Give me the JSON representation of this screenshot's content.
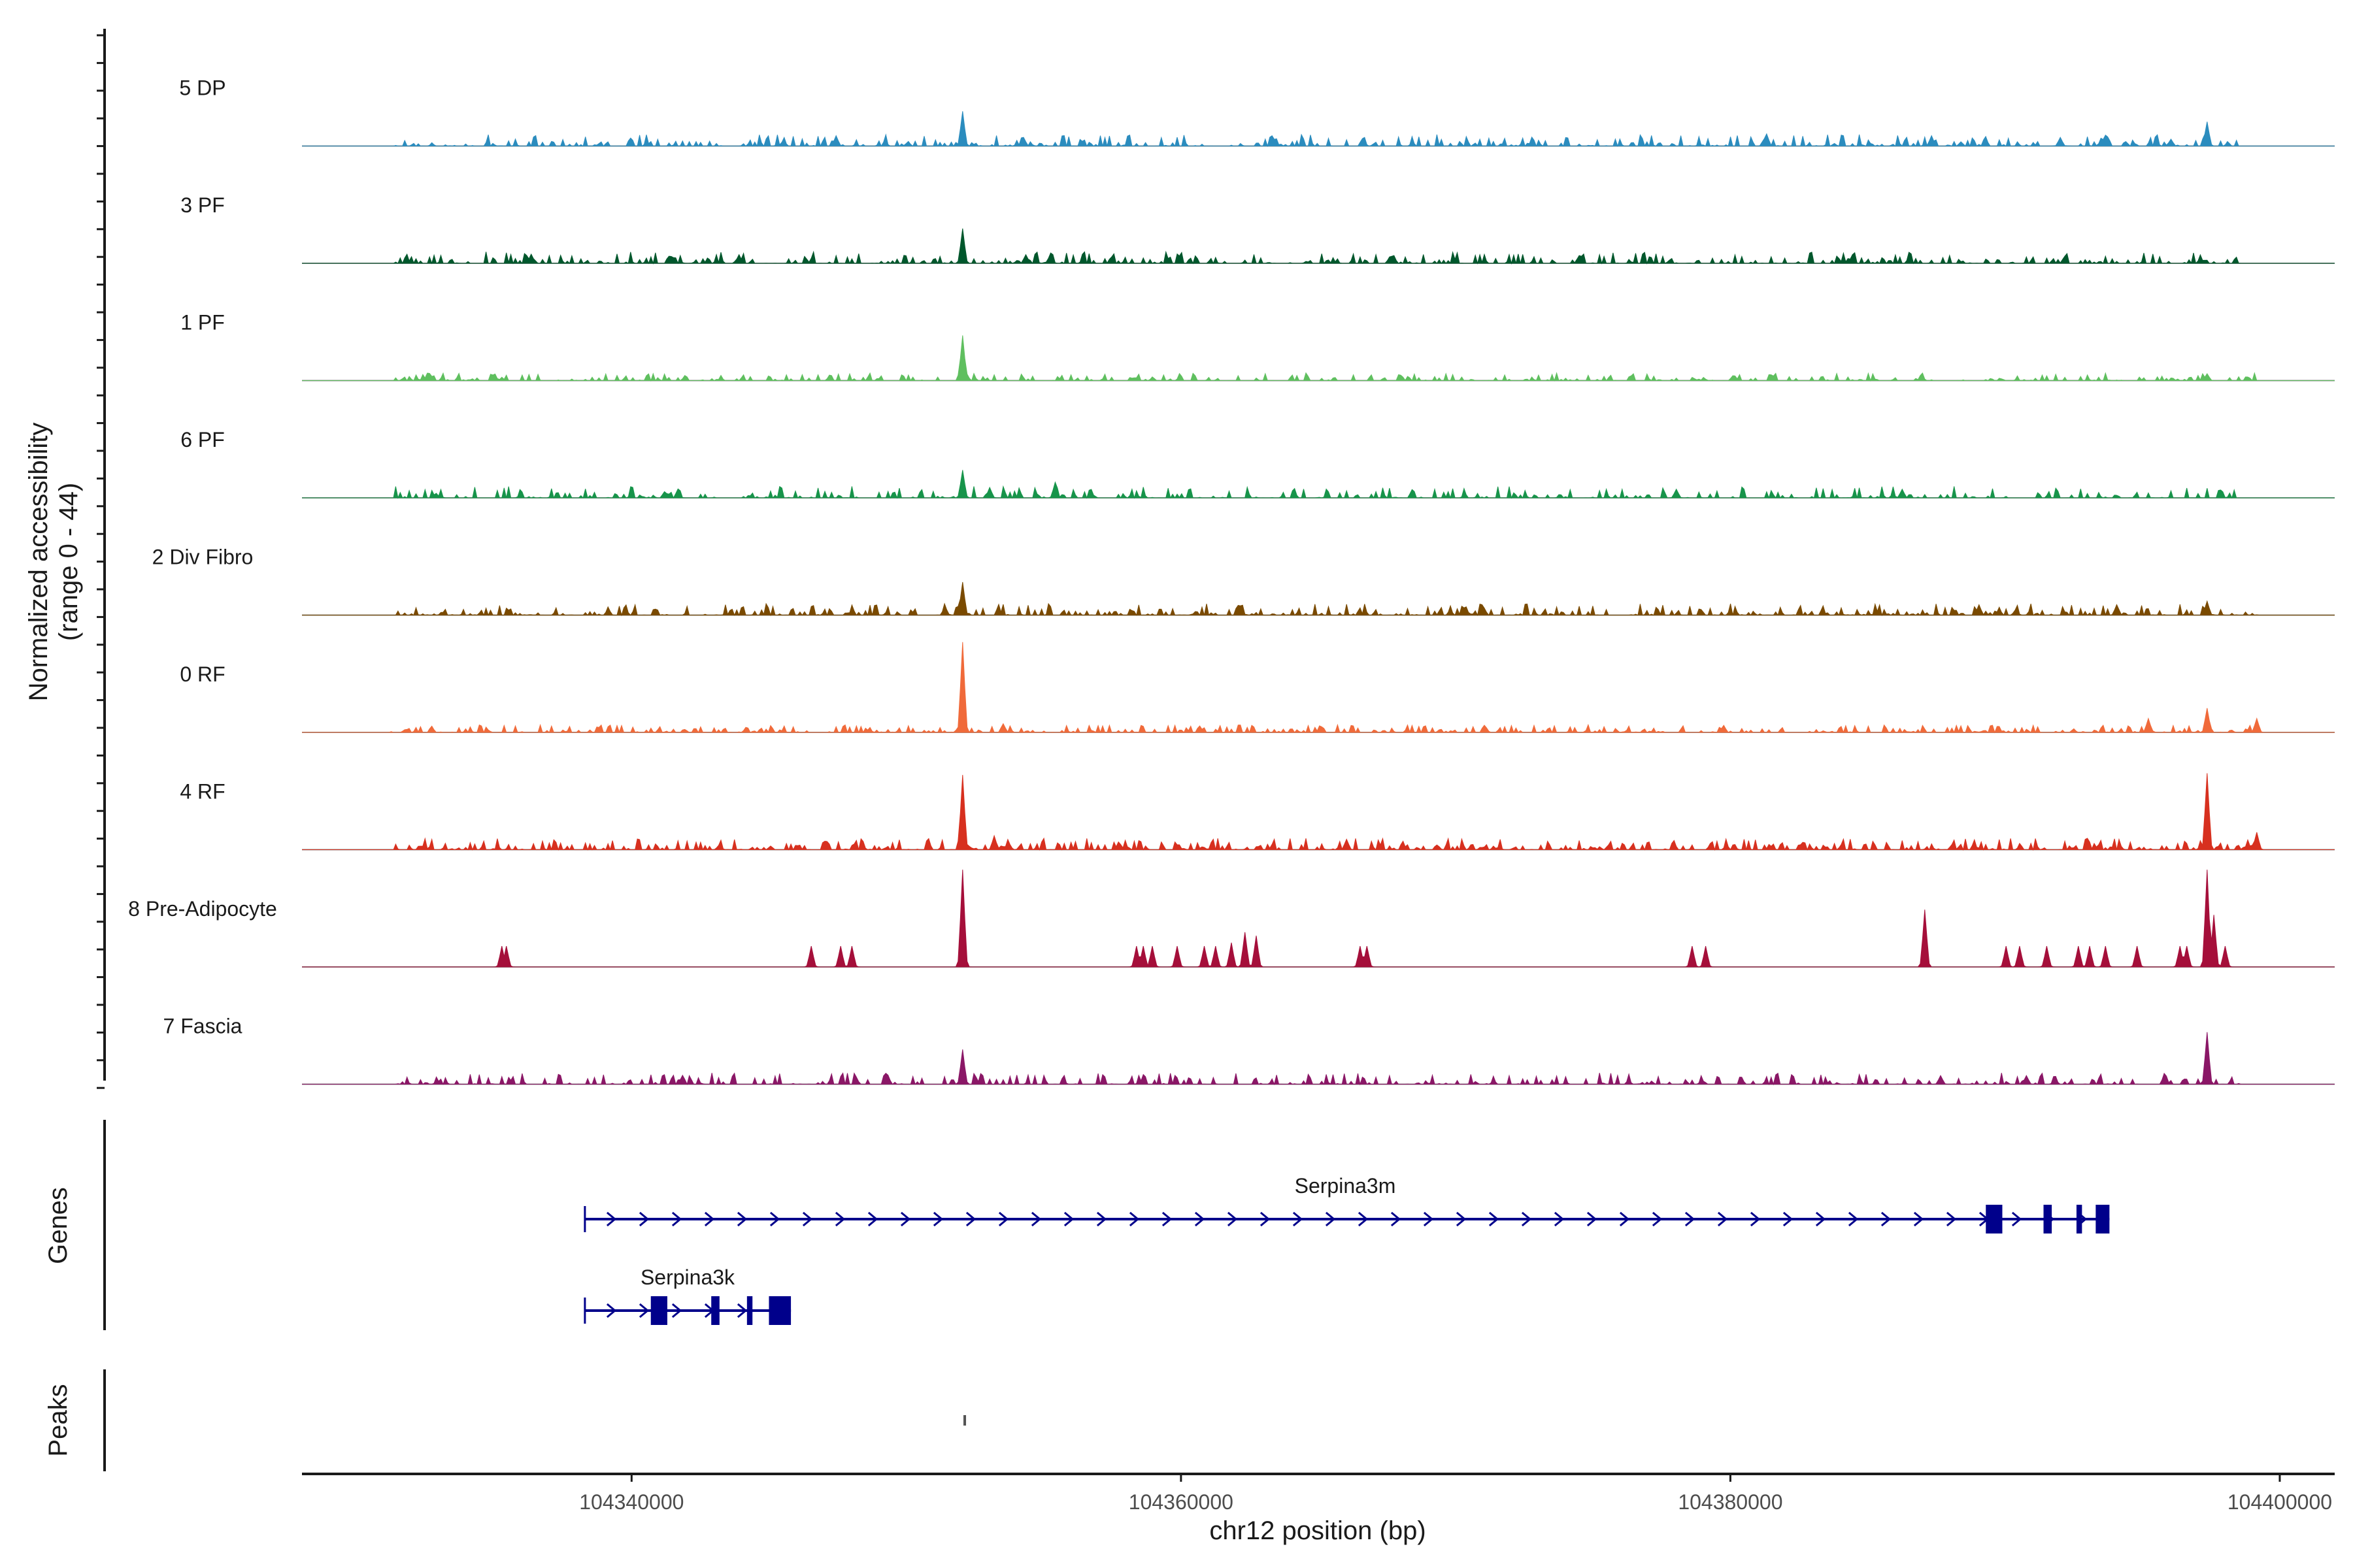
{
  "chart_data": {
    "type": "area",
    "title": "",
    "ylabel_line1": "Normalized accessibility",
    "ylabel_line2": "(range 0 - 44)",
    "y_range": [
      0,
      44
    ],
    "xlabel": "chr12 position (bp)",
    "xlim": [
      104328000,
      104402000
    ],
    "x_ticks": [
      104340000,
      104360000,
      104380000,
      104400000
    ],
    "x_tick_labels": [
      "104340000",
      "104360000",
      "104380000",
      "104400000"
    ],
    "genes_label": "Genes",
    "peaks_label": "Peaks",
    "tracks": [
      {
        "name": "5 DP",
        "color": "#2b8cbe",
        "peaks": [
          [
            104352000,
            20
          ],
          [
            104397300,
            14
          ],
          [
            104347400,
            6
          ],
          [
            104354200,
            5
          ],
          [
            104381300,
            7
          ],
          [
            104387300,
            6
          ],
          [
            104392000,
            5
          ],
          [
            104396000,
            4
          ]
        ],
        "noise_level": 3,
        "density": 0.55,
        "range": [
          104331400,
          104398600
        ],
        "seed": 11
      },
      {
        "name": "3 PF",
        "color": "#00572c",
        "peaks": [
          [
            104352000,
            20
          ],
          [
            104355200,
            6
          ],
          [
            104354300,
            5
          ],
          [
            104343900,
            5
          ],
          [
            104384400,
            5
          ]
        ],
        "noise_level": 3,
        "density": 0.55,
        "range": [
          104331400,
          104398600
        ],
        "seed": 23
      },
      {
        "name": "1 PF",
        "color": "#5fbf5f",
        "peaks": [
          [
            104352000,
            26
          ],
          [
            104397300,
            4
          ],
          [
            104368000,
            3
          ]
        ],
        "noise_level": 2,
        "density": 0.5,
        "range": [
          104331400,
          104399200
        ],
        "seed": 37
      },
      {
        "name": "6 PF",
        "color": "#17944a",
        "peaks": [
          [
            104352000,
            16
          ],
          [
            104355400,
            9
          ],
          [
            104353000,
            6
          ],
          [
            104378000,
            5
          ],
          [
            104386200,
            5
          ]
        ],
        "noise_level": 3,
        "density": 0.45,
        "range": [
          104331400,
          104398400
        ],
        "seed": 41
      },
      {
        "name": "2 Div Fibro",
        "color": "#7a4a00",
        "peaks": [
          [
            104352000,
            19
          ],
          [
            104397300,
            8
          ],
          [
            104389000,
            6
          ],
          [
            104394000,
            6
          ]
        ],
        "noise_level": 3,
        "density": 0.55,
        "range": [
          104331400,
          104399200
        ],
        "seed": 53
      },
      {
        "name": "0 RF",
        "color": "#f06a3a",
        "peaks": [
          [
            104352000,
            52
          ],
          [
            104397300,
            14
          ],
          [
            104395200,
            8
          ],
          [
            104399100,
            8
          ],
          [
            104353500,
            5
          ]
        ],
        "noise_level": 2,
        "density": 0.6,
        "range": [
          104331200,
          104399200
        ],
        "seed": 67
      },
      {
        "name": "4 RF",
        "color": "#d7301f",
        "peaks": [
          [
            104352000,
            43
          ],
          [
            104397300,
            44
          ],
          [
            104399100,
            10
          ],
          [
            104353200,
            8
          ],
          [
            104366000,
            6
          ]
        ],
        "noise_level": 3,
        "density": 0.65,
        "range": [
          104331400,
          104399200
        ],
        "seed": 71
      },
      {
        "name": "8 Pre-Adipocyte",
        "color": "#a50f3a",
        "peaks": [
          [
            104352000,
            56
          ],
          [
            104397300,
            56
          ],
          [
            104387000,
            33
          ],
          [
            104362300,
            20
          ],
          [
            104362700,
            18
          ],
          [
            104361800,
            14
          ],
          [
            104335200,
            12
          ],
          [
            104335400,
            12
          ],
          [
            104346500,
            12
          ],
          [
            104347600,
            12
          ],
          [
            104348000,
            12
          ],
          [
            104358300,
            12
          ],
          [
            104358600,
            12
          ],
          [
            104358900,
            12
          ],
          [
            104359800,
            12
          ],
          [
            104360800,
            12
          ],
          [
            104361200,
            12
          ],
          [
            104366500,
            12
          ],
          [
            104366700,
            12
          ],
          [
            104378600,
            12
          ],
          [
            104379100,
            12
          ],
          [
            104390000,
            12
          ],
          [
            104390500,
            12
          ],
          [
            104391500,
            12
          ],
          [
            104392600,
            12
          ],
          [
            104393000,
            12
          ],
          [
            104393600,
            12
          ],
          [
            104394800,
            12
          ],
          [
            104396300,
            12
          ],
          [
            104396600,
            12
          ],
          [
            104398000,
            12
          ],
          [
            104397600,
            30
          ]
        ],
        "noise_level": 0,
        "density": 0.0,
        "range": [
          104331400,
          104399200
        ],
        "seed": 83
      },
      {
        "name": "7 Fascia",
        "color": "#8a1766",
        "peaks": [
          [
            104352000,
            20
          ],
          [
            104397300,
            30
          ],
          [
            104387600,
            5
          ],
          [
            104390700,
            5
          ]
        ],
        "noise_level": 3,
        "density": 0.45,
        "range": [
          104331400,
          104398600
        ],
        "seed": 97
      }
    ],
    "genes": [
      {
        "name": "Serpina3m",
        "start": 104338300,
        "end": 104393800,
        "strand": "+",
        "exons": [
          [
            104389300,
            104389900
          ],
          [
            104391400,
            104391700
          ],
          [
            104392600,
            104392800
          ],
          [
            104393300,
            104393800
          ]
        ],
        "row": 0
      },
      {
        "name": "Serpina3k",
        "start": 104338300,
        "end": 104345800,
        "strand": "+",
        "exons": [
          [
            104340700,
            104341300
          ],
          [
            104342900,
            104343200
          ],
          [
            104344200,
            104344400
          ],
          [
            104345000,
            104345800
          ]
        ],
        "row": 1
      }
    ],
    "peak_regions": [
      [
        104352080,
        104352160
      ]
    ],
    "colors": {
      "axis": "#1a1a1a",
      "baseline": "#8c8c8c",
      "gene": "#00008b",
      "peak": "#555555"
    }
  }
}
